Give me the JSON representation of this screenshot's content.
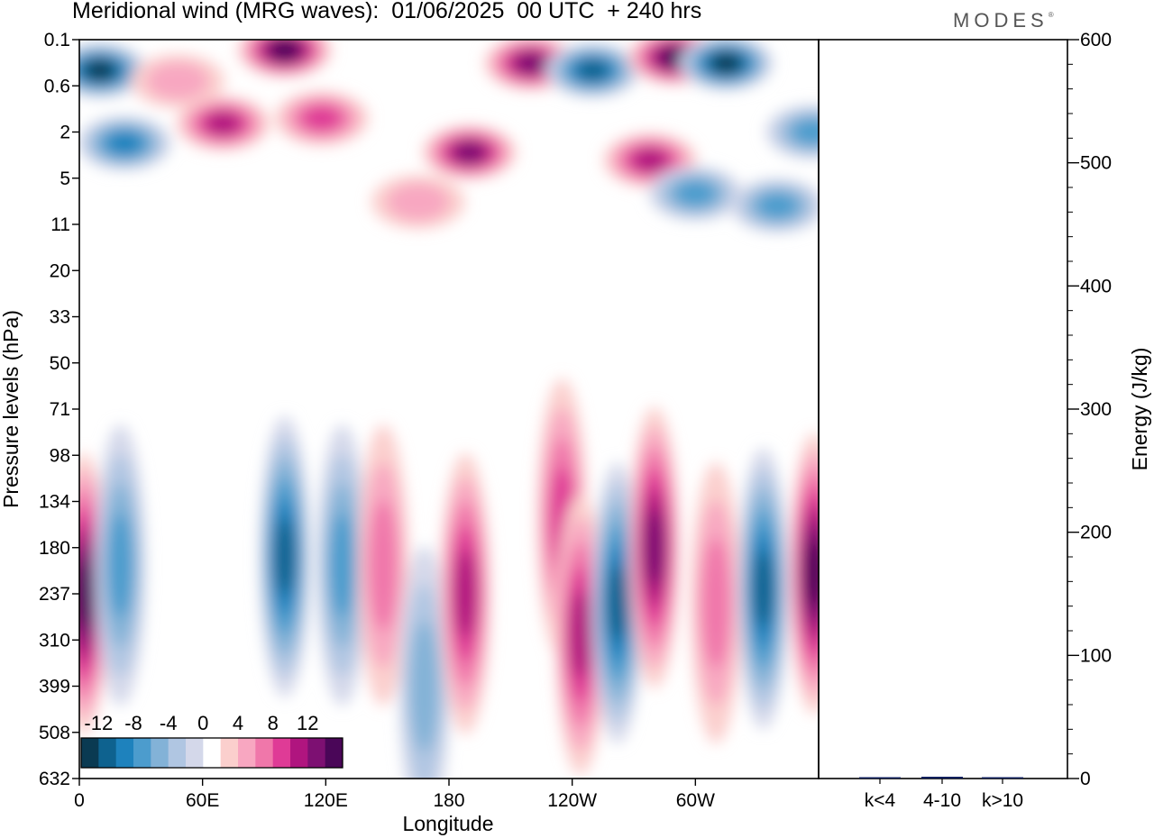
{
  "header": {
    "title": "Meridional wind (MRG waves):  01/06/2025  00 UTC  + 240 hrs",
    "brand": "MODES",
    "brand_mark": "®"
  },
  "chart_data": [
    {
      "type": "heatmap",
      "title": "Meridional wind (MRG waves):  01/06/2025  00 UTC  + 240 hrs",
      "xlabel": "Longitude",
      "ylabel": "Pressure levels (hPa)",
      "x_ticks": [
        "0",
        "60E",
        "120E",
        "180",
        "120W",
        "60W"
      ],
      "y_ticks": [
        "0.1",
        "0.6",
        "2",
        "5",
        "11",
        "20",
        "33",
        "50",
        "71",
        "98",
        "134",
        "180",
        "237",
        "310",
        "399",
        "508",
        "632"
      ],
      "colorbar": {
        "labels": [
          "-12",
          "-8",
          "-4",
          "0",
          "4",
          "8",
          "12"
        ],
        "levels": [
          -14,
          -12,
          -10,
          -8,
          -6,
          -4,
          -2,
          2,
          4,
          6,
          8,
          10,
          12,
          14
        ],
        "colors": [
          "#0a3a52",
          "#0e628f",
          "#1e82bd",
          "#4c9ccd",
          "#83b2d7",
          "#b0c6e2",
          "#d4d8ea",
          "#ffffff",
          "#fbcfcd",
          "#f8a7c1",
          "#f077aa",
          "#df3b96",
          "#b0157f",
          "#7d1072",
          "#4a0658"
        ]
      },
      "features": [
        {
          "lon": 10,
          "level": 0.33,
          "value": -14
        },
        {
          "lon": 22,
          "level": 2.5,
          "value": -10
        },
        {
          "lon": 48,
          "level": 0.5,
          "value": 4
        },
        {
          "lon": 70,
          "level": 1.6,
          "value": 10
        },
        {
          "lon": 100,
          "level": 0.15,
          "value": 14
        },
        {
          "lon": 118,
          "level": 1.4,
          "value": 8
        },
        {
          "lon": 190,
          "level": 3.0,
          "value": 12
        },
        {
          "lon": 165,
          "level": 7.5,
          "value": 4
        },
        {
          "lon": 220,
          "level": 0.25,
          "value": 12
        },
        {
          "lon": 250,
          "level": 0.33,
          "value": -12
        },
        {
          "lon": 290,
          "level": 0.2,
          "value": 14
        },
        {
          "lon": 315,
          "level": 0.25,
          "value": -14
        },
        {
          "lon": 278,
          "level": 3.5,
          "value": 10
        },
        {
          "lon": 300,
          "level": 6.5,
          "value": -8
        },
        {
          "lon": 340,
          "level": 8.0,
          "value": -8
        },
        {
          "lon": 357,
          "level": 2.0,
          "value": -8
        },
        {
          "lon": 2,
          "level": 237,
          "value": 14
        },
        {
          "lon": 20,
          "level": 200,
          "value": -8
        },
        {
          "lon": 100,
          "level": 190,
          "value": -12
        },
        {
          "lon": 128,
          "level": 200,
          "value": -8
        },
        {
          "lon": 148,
          "level": 200,
          "value": 6
        },
        {
          "lon": 168,
          "level": 400,
          "value": -6
        },
        {
          "lon": 188,
          "level": 237,
          "value": 10
        },
        {
          "lon": 235,
          "level": 150,
          "value": 8
        },
        {
          "lon": 244,
          "level": 300,
          "value": 10
        },
        {
          "lon": 262,
          "level": 250,
          "value": -12
        },
        {
          "lon": 280,
          "level": 180,
          "value": 12
        },
        {
          "lon": 310,
          "level": 250,
          "value": 6
        },
        {
          "lon": 333,
          "level": 230,
          "value": -12
        },
        {
          "lon": 358,
          "level": 210,
          "value": 14
        }
      ]
    },
    {
      "type": "bar",
      "categories": [
        "k<4",
        "4-10",
        "k>10"
      ],
      "values": [
        0.5,
        1.5,
        0.3
      ],
      "ylabel": "Energy (J/kg)",
      "ylim": [
        0,
        600
      ],
      "y_ticks": [
        "0",
        "100",
        "200",
        "300",
        "400",
        "500",
        "600"
      ],
      "bar_color": "#0f1f5c"
    }
  ]
}
